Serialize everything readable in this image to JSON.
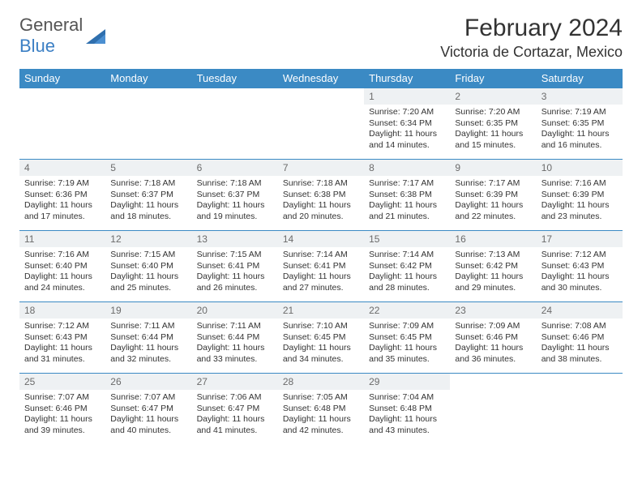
{
  "logo": {
    "text_a": "General",
    "text_b": "Blue"
  },
  "title": "February 2024",
  "location": "Victoria de Cortazar, Mexico",
  "colors": {
    "header_bg": "#3b8ac4",
    "header_text": "#ffffff",
    "daynum_bg": "#eef1f3",
    "daynum_text": "#6b6b6b",
    "border": "#3b8ac4",
    "logo_blue": "#3b7fc4"
  },
  "weekdays": [
    "Sunday",
    "Monday",
    "Tuesday",
    "Wednesday",
    "Thursday",
    "Friday",
    "Saturday"
  ],
  "first_weekday_index": 4,
  "days": [
    {
      "n": "1",
      "sunrise": "7:20 AM",
      "sunset": "6:34 PM",
      "daylight": "11 hours and 14 minutes."
    },
    {
      "n": "2",
      "sunrise": "7:20 AM",
      "sunset": "6:35 PM",
      "daylight": "11 hours and 15 minutes."
    },
    {
      "n": "3",
      "sunrise": "7:19 AM",
      "sunset": "6:35 PM",
      "daylight": "11 hours and 16 minutes."
    },
    {
      "n": "4",
      "sunrise": "7:19 AM",
      "sunset": "6:36 PM",
      "daylight": "11 hours and 17 minutes."
    },
    {
      "n": "5",
      "sunrise": "7:18 AM",
      "sunset": "6:37 PM",
      "daylight": "11 hours and 18 minutes."
    },
    {
      "n": "6",
      "sunrise": "7:18 AM",
      "sunset": "6:37 PM",
      "daylight": "11 hours and 19 minutes."
    },
    {
      "n": "7",
      "sunrise": "7:18 AM",
      "sunset": "6:38 PM",
      "daylight": "11 hours and 20 minutes."
    },
    {
      "n": "8",
      "sunrise": "7:17 AM",
      "sunset": "6:38 PM",
      "daylight": "11 hours and 21 minutes."
    },
    {
      "n": "9",
      "sunrise": "7:17 AM",
      "sunset": "6:39 PM",
      "daylight": "11 hours and 22 minutes."
    },
    {
      "n": "10",
      "sunrise": "7:16 AM",
      "sunset": "6:39 PM",
      "daylight": "11 hours and 23 minutes."
    },
    {
      "n": "11",
      "sunrise": "7:16 AM",
      "sunset": "6:40 PM",
      "daylight": "11 hours and 24 minutes."
    },
    {
      "n": "12",
      "sunrise": "7:15 AM",
      "sunset": "6:40 PM",
      "daylight": "11 hours and 25 minutes."
    },
    {
      "n": "13",
      "sunrise": "7:15 AM",
      "sunset": "6:41 PM",
      "daylight": "11 hours and 26 minutes."
    },
    {
      "n": "14",
      "sunrise": "7:14 AM",
      "sunset": "6:41 PM",
      "daylight": "11 hours and 27 minutes."
    },
    {
      "n": "15",
      "sunrise": "7:14 AM",
      "sunset": "6:42 PM",
      "daylight": "11 hours and 28 minutes."
    },
    {
      "n": "16",
      "sunrise": "7:13 AM",
      "sunset": "6:42 PM",
      "daylight": "11 hours and 29 minutes."
    },
    {
      "n": "17",
      "sunrise": "7:12 AM",
      "sunset": "6:43 PM",
      "daylight": "11 hours and 30 minutes."
    },
    {
      "n": "18",
      "sunrise": "7:12 AM",
      "sunset": "6:43 PM",
      "daylight": "11 hours and 31 minutes."
    },
    {
      "n": "19",
      "sunrise": "7:11 AM",
      "sunset": "6:44 PM",
      "daylight": "11 hours and 32 minutes."
    },
    {
      "n": "20",
      "sunrise": "7:11 AM",
      "sunset": "6:44 PM",
      "daylight": "11 hours and 33 minutes."
    },
    {
      "n": "21",
      "sunrise": "7:10 AM",
      "sunset": "6:45 PM",
      "daylight": "11 hours and 34 minutes."
    },
    {
      "n": "22",
      "sunrise": "7:09 AM",
      "sunset": "6:45 PM",
      "daylight": "11 hours and 35 minutes."
    },
    {
      "n": "23",
      "sunrise": "7:09 AM",
      "sunset": "6:46 PM",
      "daylight": "11 hours and 36 minutes."
    },
    {
      "n": "24",
      "sunrise": "7:08 AM",
      "sunset": "6:46 PM",
      "daylight": "11 hours and 38 minutes."
    },
    {
      "n": "25",
      "sunrise": "7:07 AM",
      "sunset": "6:46 PM",
      "daylight": "11 hours and 39 minutes."
    },
    {
      "n": "26",
      "sunrise": "7:07 AM",
      "sunset": "6:47 PM",
      "daylight": "11 hours and 40 minutes."
    },
    {
      "n": "27",
      "sunrise": "7:06 AM",
      "sunset": "6:47 PM",
      "daylight": "11 hours and 41 minutes."
    },
    {
      "n": "28",
      "sunrise": "7:05 AM",
      "sunset": "6:48 PM",
      "daylight": "11 hours and 42 minutes."
    },
    {
      "n": "29",
      "sunrise": "7:04 AM",
      "sunset": "6:48 PM",
      "daylight": "11 hours and 43 minutes."
    }
  ],
  "labels": {
    "sunrise": "Sunrise:",
    "sunset": "Sunset:",
    "daylight": "Daylight:"
  }
}
